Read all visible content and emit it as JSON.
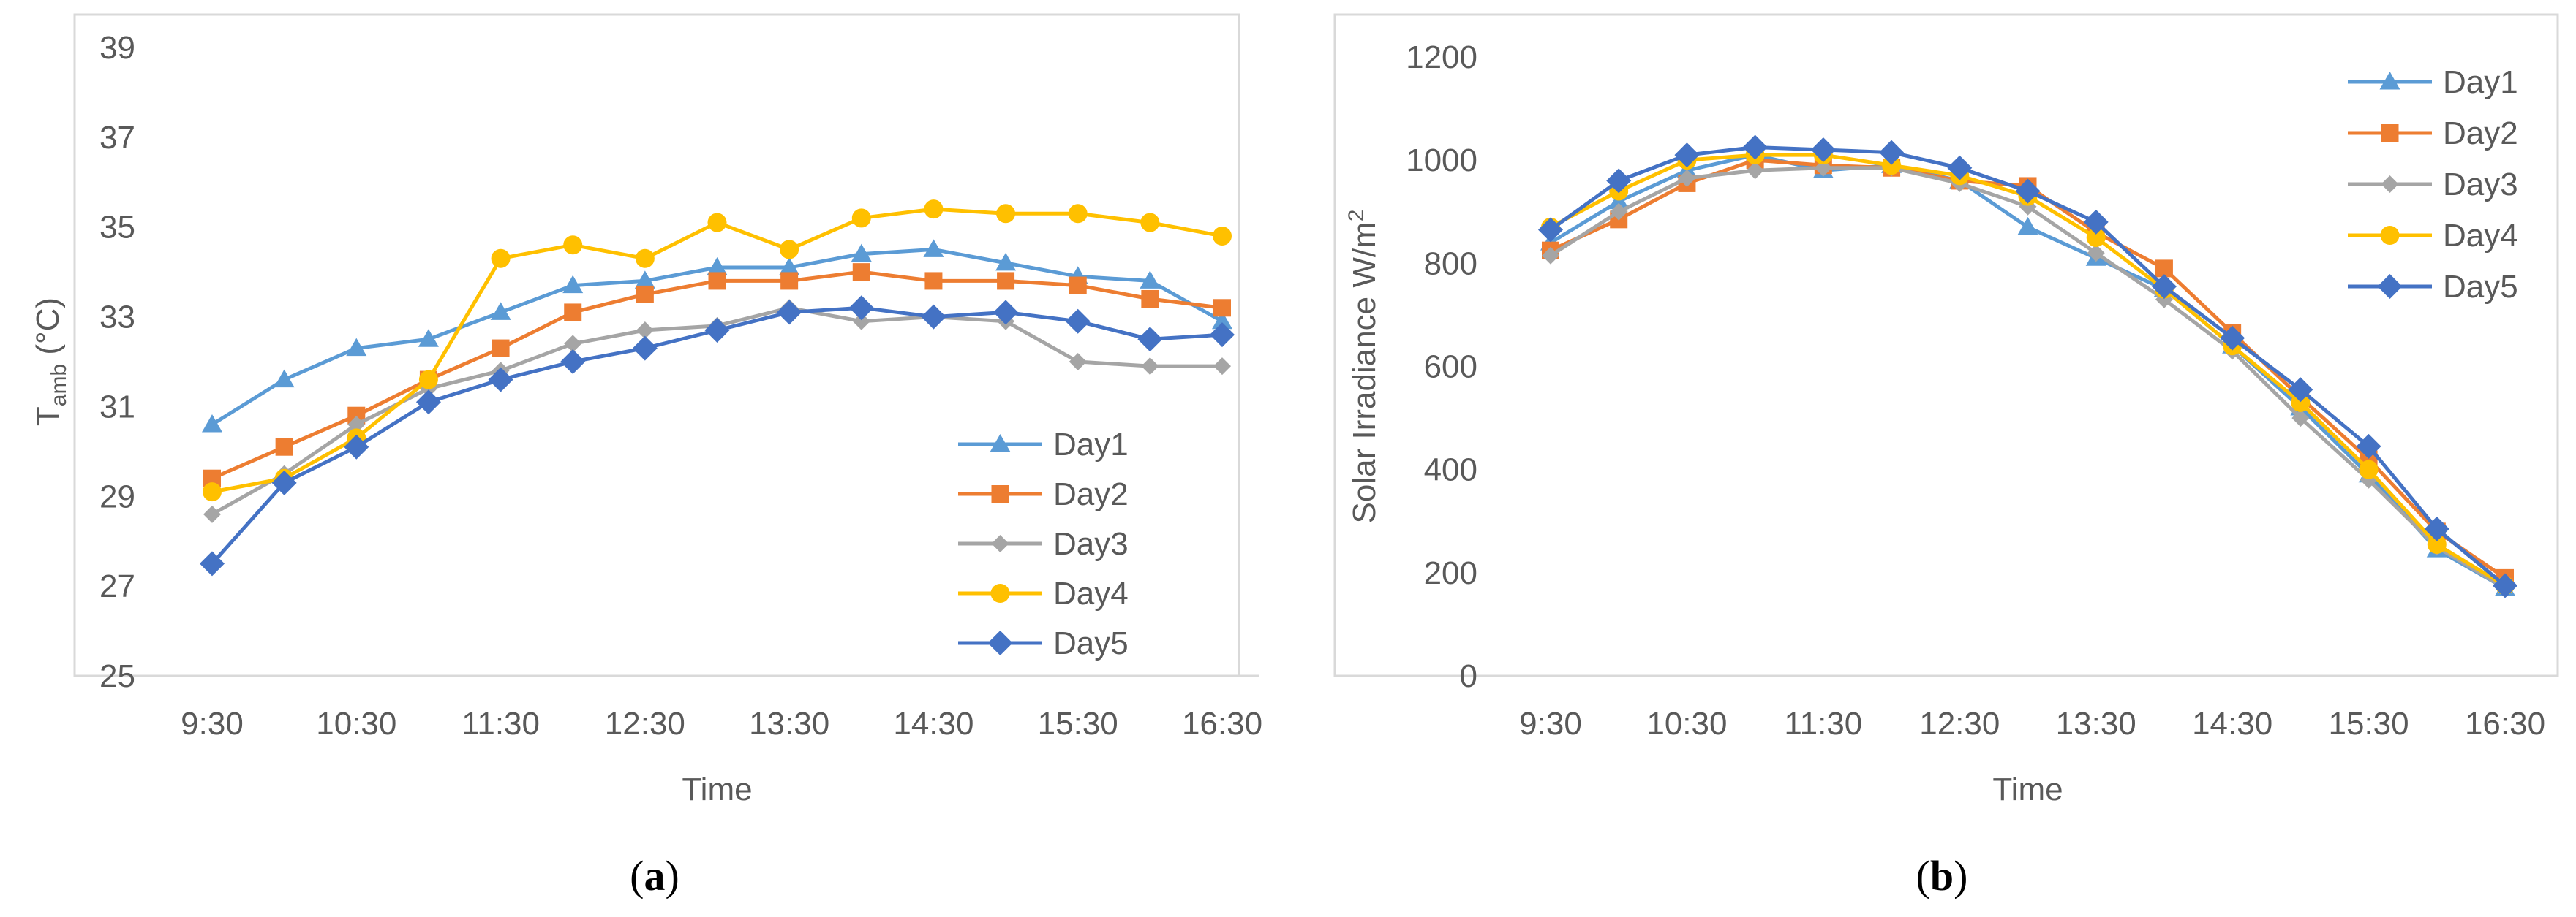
{
  "chart_data": [
    {
      "type": "line",
      "caption_letter": "a",
      "categories": [
        "9:30",
        "10:00",
        "10:30",
        "11:00",
        "11:30",
        "12:00",
        "12:30",
        "13:00",
        "13:30",
        "14:00",
        "14:30",
        "15:00",
        "15:30",
        "16:00",
        "16:30"
      ],
      "tick_labels": [
        "9:30",
        "10:30",
        "11:30",
        "12:30",
        "13:30",
        "14:30",
        "15:30",
        "16:30"
      ],
      "xlabel": "Time",
      "ylabel_main": "T",
      "ylabel_sub": "amb",
      "ylabel_unit": " (°C)",
      "ylim": [
        25,
        40
      ],
      "yticks": [
        25,
        27,
        29,
        31,
        33,
        35,
        37,
        39
      ],
      "legend_position": "bottom-right",
      "series": [
        {
          "name": "Day1",
          "color": "#5B9BD5",
          "marker": "triangle",
          "values": [
            30.6,
            31.6,
            32.3,
            32.5,
            33.1,
            33.7,
            33.8,
            34.1,
            34.1,
            34.4,
            34.5,
            34.2,
            33.9,
            33.8,
            32.9
          ]
        },
        {
          "name": "Day2",
          "color": "#ED7D31",
          "marker": "square",
          "values": [
            29.4,
            30.1,
            30.8,
            31.6,
            32.3,
            33.1,
            33.5,
            33.8,
            33.8,
            34.0,
            33.8,
            33.8,
            33.7,
            33.4,
            33.2
          ]
        },
        {
          "name": "Day3",
          "color": "#A5A5A5",
          "marker": "diamond-small",
          "values": [
            28.6,
            29.5,
            30.6,
            31.4,
            31.8,
            32.4,
            32.7,
            32.8,
            33.2,
            32.9,
            33.0,
            32.9,
            32.0,
            31.9,
            31.9
          ]
        },
        {
          "name": "Day4",
          "color": "#FFC000",
          "marker": "circle",
          "values": [
            29.1,
            29.4,
            30.3,
            31.6,
            34.3,
            34.6,
            34.3,
            35.1,
            34.5,
            35.2,
            35.4,
            35.3,
            35.3,
            35.1,
            34.8
          ]
        },
        {
          "name": "Day5",
          "color": "#4472C4",
          "marker": "diamond",
          "values": [
            27.5,
            29.3,
            30.1,
            31.1,
            31.6,
            32.0,
            32.3,
            32.7,
            33.1,
            33.2,
            33.0,
            33.1,
            32.9,
            32.5,
            32.6
          ]
        }
      ]
    },
    {
      "type": "line",
      "caption_letter": "b",
      "categories": [
        "9:30",
        "10:00",
        "10:30",
        "11:00",
        "11:30",
        "12:00",
        "12:30",
        "13:00",
        "13:30",
        "14:00",
        "14:30",
        "15:00",
        "15:30",
        "16:00",
        "16:30"
      ],
      "tick_labels": [
        "9:30",
        "10:30",
        "11:30",
        "12:30",
        "13:30",
        "14:30",
        "15:30",
        "16:30"
      ],
      "xlabel": "Time",
      "ylabel_main": "Solar Irradiance W/m",
      "ylabel_sup": "2",
      "ylim": [
        0,
        1200
      ],
      "yticks": [
        0,
        200,
        400,
        600,
        800,
        1000,
        1200
      ],
      "legend_position": "top-right",
      "series": [
        {
          "name": "Day1",
          "color": "#5B9BD5",
          "marker": "triangle",
          "values": [
            840,
            920,
            980,
            1010,
            980,
            990,
            960,
            870,
            810,
            750,
            640,
            520,
            390,
            245,
            170
          ]
        },
        {
          "name": "Day2",
          "color": "#ED7D31",
          "marker": "square",
          "values": [
            825,
            885,
            955,
            1000,
            990,
            985,
            960,
            950,
            860,
            790,
            665,
            540,
            420,
            280,
            190
          ]
        },
        {
          "name": "Day3",
          "color": "#A5A5A5",
          "marker": "diamond-small",
          "values": [
            815,
            900,
            965,
            980,
            985,
            985,
            955,
            910,
            820,
            730,
            630,
            500,
            380,
            250,
            170
          ]
        },
        {
          "name": "Day4",
          "color": "#FFC000",
          "marker": "circle",
          "values": [
            870,
            940,
            1000,
            1010,
            1010,
            990,
            970,
            930,
            850,
            750,
            640,
            530,
            400,
            255,
            175
          ]
        },
        {
          "name": "Day5",
          "color": "#4472C4",
          "marker": "diamond",
          "values": [
            865,
            960,
            1010,
            1025,
            1020,
            1015,
            985,
            940,
            880,
            755,
            655,
            555,
            445,
            285,
            175
          ]
        }
      ]
    }
  ]
}
